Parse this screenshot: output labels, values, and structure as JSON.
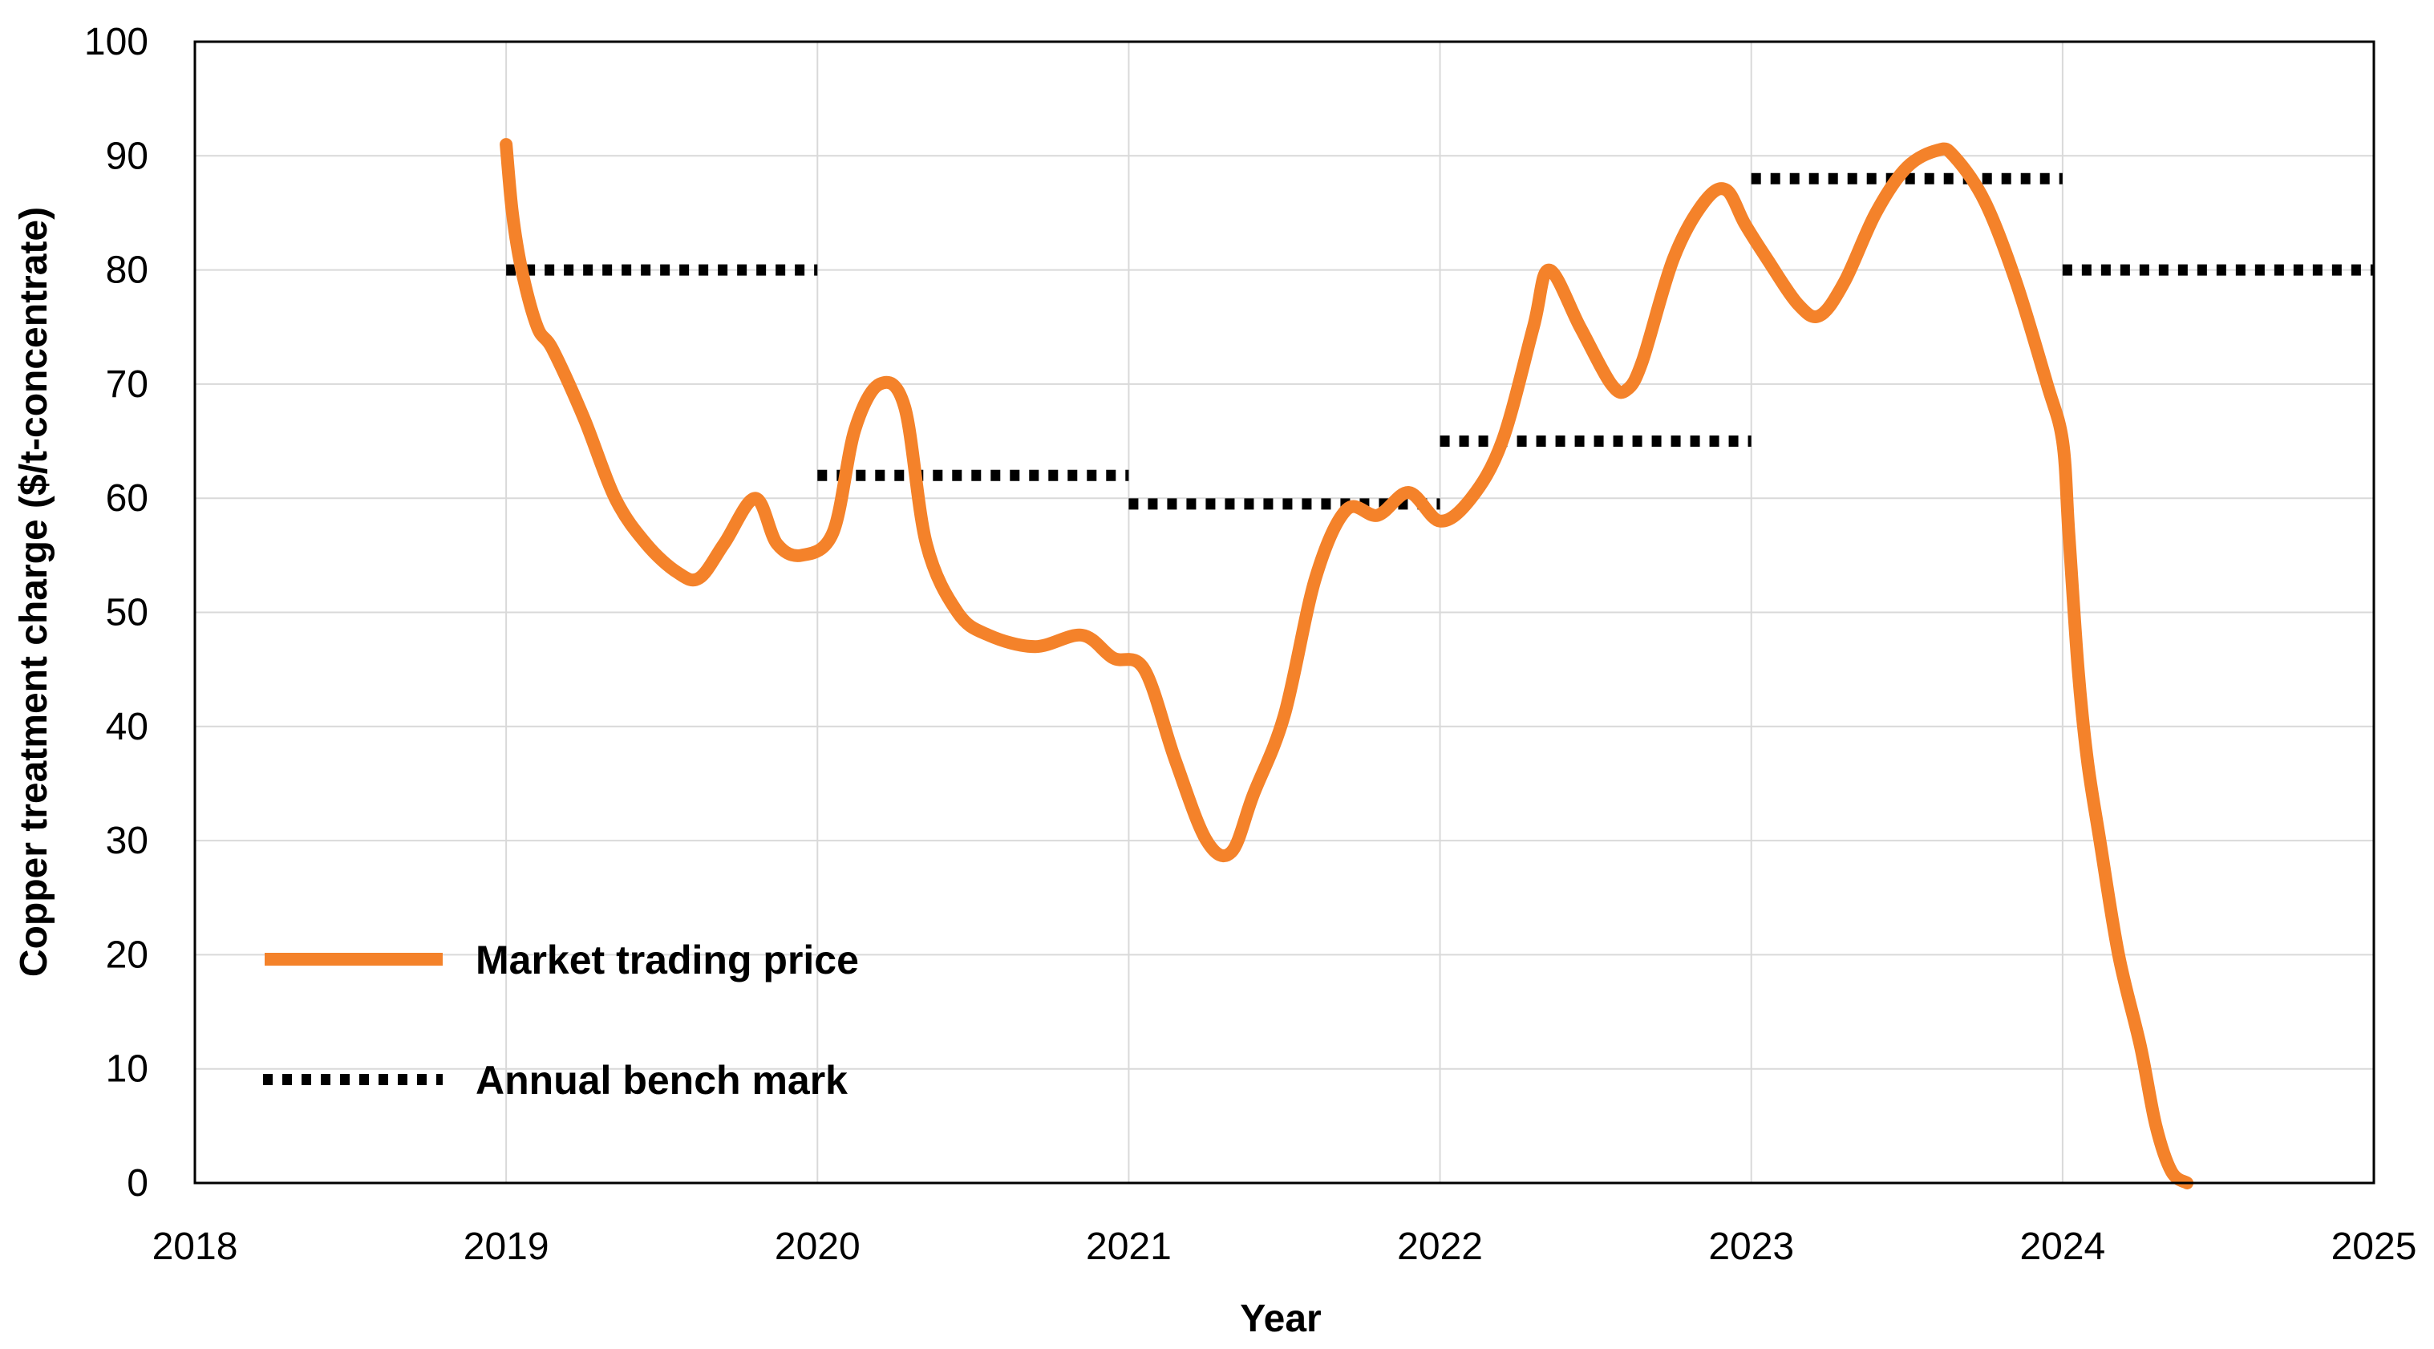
{
  "chart_data": {
    "type": "line",
    "title": "",
    "xlabel": "Year",
    "ylabel": "Copper treatment charge ($/t-concentrate)",
    "xlim": [
      2018,
      2025
    ],
    "ylim": [
      0,
      100
    ],
    "x_ticks": [
      "2018",
      "2019",
      "2020",
      "2021",
      "2022",
      "2023",
      "2024",
      "2025"
    ],
    "y_ticks": [
      "0",
      "10",
      "20",
      "30",
      "40",
      "50",
      "60",
      "70",
      "80",
      "90",
      "100"
    ],
    "grid": true,
    "legend_position": "bottom-left",
    "colors": {
      "market": "#F4822A",
      "benchmark": "#000000",
      "grid": "#D9D9D9",
      "frame": "#000000"
    },
    "series": [
      {
        "name": "Market trading price",
        "style": "solid",
        "x": [
          2019.0,
          2019.02,
          2019.05,
          2019.1,
          2019.15,
          2019.25,
          2019.35,
          2019.45,
          2019.55,
          2019.62,
          2019.7,
          2019.8,
          2019.87,
          2019.95,
          2020.05,
          2020.12,
          2020.2,
          2020.28,
          2020.35,
          2020.45,
          2020.55,
          2020.7,
          2020.85,
          2020.95,
          2021.05,
          2021.15,
          2021.25,
          2021.33,
          2021.4,
          2021.5,
          2021.6,
          2021.7,
          2021.8,
          2021.9,
          2022.0,
          2022.1,
          2022.2,
          2022.3,
          2022.35,
          2022.45,
          2022.55,
          2022.6,
          2022.65,
          2022.75,
          2022.85,
          2022.92,
          2022.98,
          2023.05,
          2023.15,
          2023.22,
          2023.3,
          2023.4,
          2023.5,
          2023.6,
          2023.65,
          2023.75,
          2023.85,
          2023.95,
          2024.0,
          2024.02,
          2024.05,
          2024.08,
          2024.12,
          2024.18,
          2024.25,
          2024.3,
          2024.35,
          2024.4
        ],
        "values": [
          91,
          85,
          80,
          75,
          73,
          67,
          60,
          56,
          53.5,
          53,
          56,
          60,
          56,
          55,
          57,
          66,
          70,
          68,
          56,
          50,
          48,
          47,
          48,
          46,
          45,
          37,
          30,
          29,
          34,
          41,
          53,
          59,
          58.5,
          60.5,
          58,
          60,
          65,
          75,
          80,
          75,
          70,
          69.5,
          72,
          81,
          86,
          87,
          84,
          81,
          77,
          76,
          79,
          85,
          89,
          90.5,
          90,
          86,
          79,
          70,
          65,
          57,
          45,
          37,
          30,
          20,
          12,
          5,
          1,
          0
        ]
      },
      {
        "name": "Annual bench mark",
        "style": "dotted",
        "segments": [
          {
            "x": [
              2019,
              2020
            ],
            "value": 80
          },
          {
            "x": [
              2020,
              2021
            ],
            "value": 62
          },
          {
            "x": [
              2021,
              2022
            ],
            "value": 59.5
          },
          {
            "x": [
              2022,
              2023
            ],
            "value": 65
          },
          {
            "x": [
              2023,
              2024
            ],
            "value": 88
          },
          {
            "x": [
              2024,
              2025
            ],
            "value": 80
          }
        ]
      }
    ]
  }
}
